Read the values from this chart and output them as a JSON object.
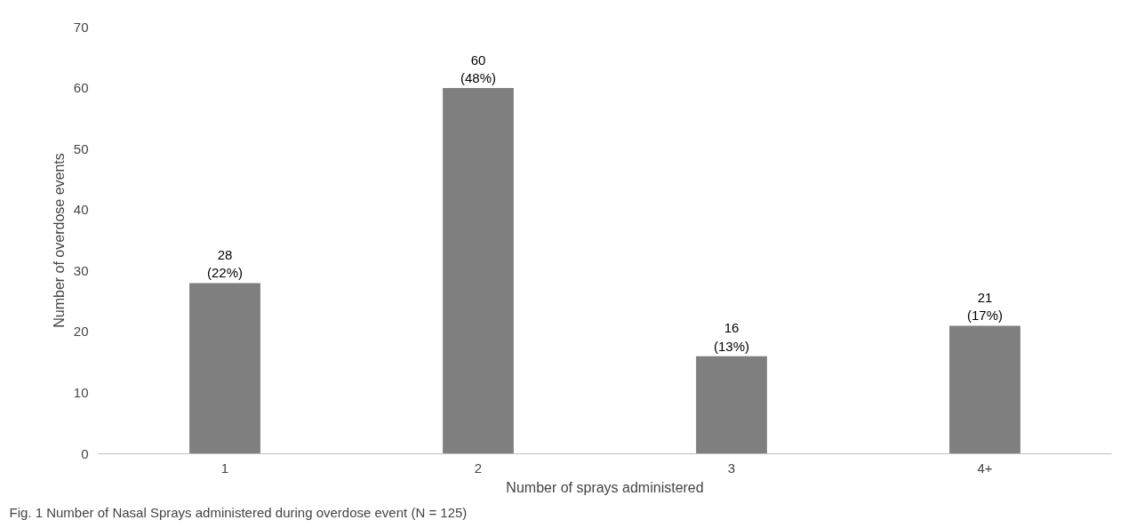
{
  "chart_data": {
    "type": "bar",
    "xlabel": "Number of sprays administered",
    "ylabel": "Number of overdose events",
    "categories": [
      "1",
      "2",
      "3",
      "4+"
    ],
    "values": [
      28,
      60,
      16,
      21
    ],
    "value_labels": [
      "28\n(22%)",
      "60\n(48%)",
      "16\n(13%)",
      "21\n(17%)"
    ],
    "color": "#7f7f7f",
    "ylim": [
      0,
      70
    ],
    "yticks": [
      0,
      10,
      20,
      30,
      40,
      50,
      60,
      70
    ],
    "grid": false,
    "annotations": [
      "Fig. 1 Number of Nasal Sprays administered during overdose event (N = 125)"
    ]
  }
}
